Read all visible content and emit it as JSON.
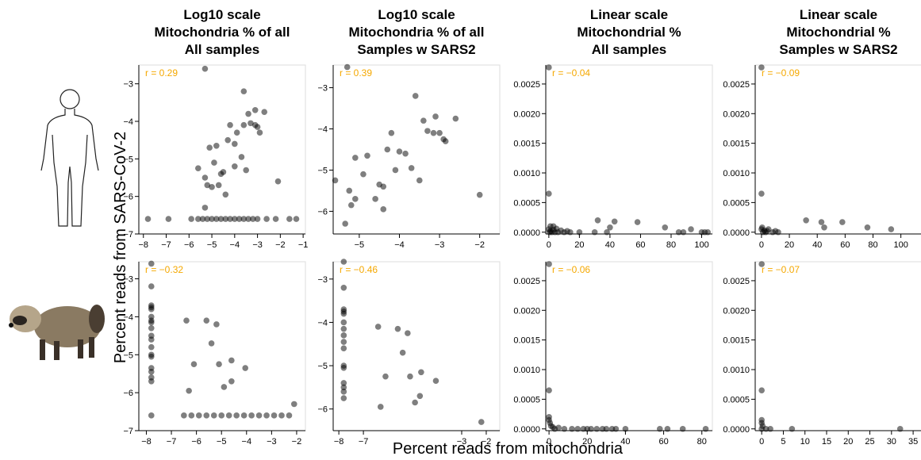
{
  "y_label": "Percent reads from SARS-CoV-2",
  "x_label": "Percent reads from mitochondria",
  "chart_data": [
    {
      "type": "scatter",
      "title": [
        "Log10 scale",
        "Mitochondria % of all",
        "All samples"
      ],
      "annotation": "r = 0.29",
      "color": "#000000",
      "x": [
        -5.3,
        -3.6,
        -3.1,
        -3.4,
        -2.7,
        -3.3,
        -3.1,
        -3.6,
        -3.0,
        -2.9,
        -4.2,
        -3.9,
        -4.0,
        -4.3,
        -4.8,
        -5.1,
        -3.7,
        -4.9,
        -4.5,
        -4.6,
        -5.6,
        -5.3,
        -4.0,
        -3.5,
        -5.2,
        -5.0,
        -4.7,
        -4.4,
        -2.1,
        -5.3,
        -7.8,
        -6.9,
        -5.9,
        -5.6,
        -5.4,
        -5.2,
        -5.0,
        -4.8,
        -4.6,
        -4.4,
        -4.2,
        -4.0,
        -3.8,
        -3.6,
        -3.4,
        -3.2,
        -3.0,
        -2.6,
        -2.2,
        -1.6,
        -1.3
      ],
      "y": [
        -2.6,
        -3.2,
        -3.7,
        -3.8,
        -3.75,
        -4.05,
        -4.1,
        -4.1,
        -4.15,
        -4.3,
        -4.1,
        -4.3,
        -4.6,
        -4.5,
        -4.65,
        -4.7,
        -4.95,
        -5.1,
        -5.35,
        -5.4,
        -5.25,
        -5.5,
        -5.2,
        -5.3,
        -5.7,
        -5.75,
        -5.7,
        -5.95,
        -5.6,
        -6.3,
        -6.6,
        -6.6,
        -6.6,
        -6.6,
        -6.6,
        -6.6,
        -6.6,
        -6.6,
        -6.6,
        -6.6,
        -6.6,
        -6.6,
        -6.6,
        -6.6,
        -6.6,
        -6.6,
        -6.6,
        -6.6,
        -6.6,
        -6.6,
        -6.6
      ],
      "xlim": [
        -8.2,
        -0.9
      ],
      "ylim": [
        -7,
        -2.5
      ],
      "xticks": [
        {
          "value": -8,
          "label": "−8"
        },
        {
          "value": -7,
          "label": "−7"
        },
        {
          "value": -6,
          "label": "−6"
        },
        {
          "value": -5,
          "label": "−5"
        },
        {
          "value": -4,
          "label": "−4"
        },
        {
          "value": -3,
          "label": "−3"
        },
        {
          "value": -2,
          "label": "−2"
        },
        {
          "value": -1,
          "label": "−1"
        }
      ],
      "yticks": [
        {
          "value": -3,
          "label": "−3"
        },
        {
          "value": -4,
          "label": "−4"
        },
        {
          "value": -5,
          "label": "−5"
        },
        {
          "value": -6,
          "label": "−6"
        },
        {
          "value": -7,
          "label": "−7"
        }
      ]
    },
    {
      "type": "scatter",
      "title": [
        "Log10 scale",
        "Mitochondria % of all",
        "Samples w SARS2"
      ],
      "annotation": "r = 0.39",
      "color": "#000000",
      "x": [
        -5.3,
        -3.6,
        -3.1,
        -3.4,
        -2.6,
        -3.3,
        -3.0,
        -3.15,
        -4.2,
        -2.9,
        -2.85,
        -4.0,
        -3.85,
        -4.3,
        -4.8,
        -5.1,
        -3.7,
        -4.9,
        -4.1,
        -5.6,
        -4.5,
        -4.4,
        -3.5,
        -5.25,
        -5.1,
        -4.6,
        -5.2,
        -4.4,
        -2.0,
        -5.35
      ],
      "y": [
        -2.5,
        -3.2,
        -3.7,
        -3.8,
        -3.75,
        -4.05,
        -4.1,
        -4.1,
        -4.1,
        -4.25,
        -4.3,
        -4.55,
        -4.6,
        -4.5,
        -4.65,
        -4.7,
        -4.95,
        -5.1,
        -5.0,
        -5.25,
        -5.35,
        -5.4,
        -5.25,
        -5.5,
        -5.7,
        -5.7,
        -5.85,
        -5.95,
        -5.6,
        -6.3
      ],
      "xlim": [
        -5.65,
        -1.5
      ],
      "ylim": [
        -6.55,
        -2.45
      ],
      "xticks": [
        {
          "value": -5,
          "label": "−5"
        },
        {
          "value": -4,
          "label": "−4"
        },
        {
          "value": -3,
          "label": "−3"
        },
        {
          "value": -2,
          "label": "−2"
        }
      ],
      "yticks": [
        {
          "value": -3,
          "label": "−3"
        },
        {
          "value": -4,
          "label": "−4"
        },
        {
          "value": -5,
          "label": "−5"
        },
        {
          "value": -6,
          "label": "−6"
        }
      ]
    },
    {
      "type": "scatter",
      "title": [
        "Linear scale",
        "Mitochondrial %",
        "All samples"
      ],
      "annotation": "r = −0.04",
      "color": "#000000",
      "x": [
        0,
        0,
        0,
        0.5,
        1,
        2,
        3,
        4,
        5,
        6,
        8,
        10,
        12,
        14,
        20,
        30,
        38,
        32,
        43,
        58,
        40,
        76,
        93,
        100,
        88,
        85,
        102,
        104,
        3,
        1
      ],
      "y": [
        0.00278,
        0.00065,
        5e-05,
        0,
        2e-05,
        0,
        4e-05,
        0,
        6e-05,
        0,
        3e-05,
        0,
        2e-05,
        0,
        0,
        0,
        0,
        0.0002,
        0.00018,
        0.00017,
        8e-05,
        8e-05,
        5e-05,
        0,
        0,
        0,
        0,
        0,
        0.0001,
        0.0001
      ],
      "xlim": [
        -2,
        107
      ],
      "ylim": [
        -3e-05,
        0.00282
      ],
      "xticks": [
        0,
        20,
        40,
        60,
        80,
        100
      ],
      "yticks": [
        {
          "value": 0,
          "label": "0.0000"
        },
        {
          "value": 0.0005,
          "label": "0.0005"
        },
        {
          "value": 0.001,
          "label": "0.0010"
        },
        {
          "value": 0.0015,
          "label": "0.0015"
        },
        {
          "value": 0.002,
          "label": "0.0020"
        },
        {
          "value": 0.0025,
          "label": "0.0025"
        }
      ]
    },
    {
      "type": "scatter",
      "title": [
        "Linear scale",
        "Mitochondrial %",
        "Samples w SARS2"
      ],
      "annotation": "r = −0.09",
      "color": "#000000",
      "x": [
        0,
        0,
        0,
        1,
        2,
        3,
        5,
        8,
        10,
        12,
        32,
        43,
        45,
        58,
        76,
        93,
        0.5,
        4
      ],
      "y": [
        0.00278,
        0.00065,
        5e-05,
        0,
        3e-05,
        0,
        5e-05,
        0,
        2e-05,
        0,
        0.0002,
        0.00017,
        8e-05,
        0.00017,
        8e-05,
        5e-05,
        8e-05,
        2e-05
      ],
      "xlim": [
        -4.5,
        115
      ],
      "ylim": [
        -3e-05,
        0.00282
      ],
      "xticks": [
        0,
        20,
        40,
        60,
        80,
        100
      ],
      "yticks": [
        {
          "value": 0,
          "label": "0.0000"
        },
        {
          "value": 0.0005,
          "label": "0.0005"
        },
        {
          "value": 0.001,
          "label": "0.0010"
        },
        {
          "value": 0.0015,
          "label": "0.0015"
        },
        {
          "value": 0.002,
          "label": "0.0020"
        },
        {
          "value": 0.0025,
          "label": "0.0025"
        }
      ]
    },
    {
      "type": "scatter",
      "annotation": "r = −0.32",
      "color": "#000000",
      "x": [
        -7.8,
        -7.8,
        -7.8,
        -7.8,
        -7.8,
        -7.8,
        -7.8,
        -7.8,
        -7.8,
        -7.8,
        -7.8,
        -7.8,
        -7.8,
        -7.8,
        -7.8,
        -7.8,
        -7.8,
        -7.8,
        -7.8,
        -6.4,
        -5.6,
        -5.2,
        -5.4,
        -6.1,
        -5.1,
        -4.6,
        -4.05,
        -4.9,
        -4.6,
        -6.3,
        -2.1,
        -6.5,
        -6.2,
        -5.9,
        -5.6,
        -5.3,
        -5.0,
        -4.7,
        -4.4,
        -4.1,
        -3.8,
        -3.5,
        -3.2,
        -2.9,
        -2.6,
        -2.3
      ],
      "y": [
        -2.6,
        -3.2,
        -3.7,
        -3.75,
        -3.8,
        -4.0,
        -4.1,
        -4.15,
        -4.3,
        -4.5,
        -4.6,
        -4.8,
        -5.0,
        -5.05,
        -5.35,
        -5.45,
        -5.6,
        -5.7,
        -6.6,
        -4.1,
        -4.1,
        -4.2,
        -4.7,
        -5.25,
        -5.25,
        -5.15,
        -5.35,
        -5.85,
        -5.7,
        -5.95,
        -6.3,
        -6.6,
        -6.6,
        -6.6,
        -6.6,
        -6.6,
        -6.6,
        -6.6,
        -6.6,
        -6.6,
        -6.6,
        -6.6,
        -6.6,
        -6.6,
        -6.6,
        -6.6
      ],
      "xlim": [
        -8.3,
        -1.65
      ],
      "ylim": [
        -7,
        -2.55
      ],
      "xticks": [
        {
          "value": -8,
          "label": "−8"
        },
        {
          "value": -7,
          "label": "−7"
        },
        {
          "value": -6,
          "label": "−6"
        },
        {
          "value": -5,
          "label": "−5"
        },
        {
          "value": -4,
          "label": "−4"
        },
        {
          "value": -3,
          "label": "−3"
        },
        {
          "value": -2,
          "label": "−2"
        }
      ],
      "yticks": [
        {
          "value": -3,
          "label": "−3"
        },
        {
          "value": -4,
          "label": "−4"
        },
        {
          "value": -5,
          "label": "−5"
        },
        {
          "value": -6,
          "label": "−6"
        },
        {
          "value": -7,
          "label": "−7"
        }
      ]
    },
    {
      "type": "scatter",
      "annotation": "r = −0.46",
      "color": "#000000",
      "x": [
        -7.8,
        -7.8,
        -7.8,
        -7.8,
        -7.8,
        -7.8,
        -7.8,
        -7.8,
        -7.8,
        -7.8,
        -7.8,
        -7.8,
        -7.8,
        -7.8,
        -7.8,
        -7.8,
        -6.4,
        -5.6,
        -5.2,
        -5.4,
        -6.1,
        -5.1,
        -4.65,
        -4.05,
        -4.9,
        -4.7,
        -6.3,
        -2.2
      ],
      "y": [
        -2.6,
        -3.2,
        -3.7,
        -3.75,
        -3.8,
        -4.0,
        -4.15,
        -4.3,
        -4.45,
        -4.6,
        -5.0,
        -5.05,
        -5.4,
        -5.5,
        -5.6,
        -5.75,
        -4.1,
        -4.15,
        -4.25,
        -4.7,
        -5.25,
        -5.25,
        -5.15,
        -5.35,
        -5.85,
        -5.7,
        -5.95,
        -6.3
      ],
      "xlim": [
        -8.23,
        -1.45
      ],
      "ylim": [
        -6.5,
        -2.6
      ],
      "xticks": [
        {
          "value": -8,
          "label": "−8"
        },
        {
          "value": -7,
          "label": "−7"
        },
        {
          "value": -3,
          "label": "−3"
        },
        {
          "value": -2,
          "label": "−2"
        }
      ],
      "yticks": [
        {
          "value": -3,
          "label": "−3"
        },
        {
          "value": -4,
          "label": "−4"
        },
        {
          "value": -5,
          "label": "−5"
        },
        {
          "value": -6,
          "label": "−6"
        }
      ]
    },
    {
      "type": "scatter",
      "annotation": "r = −0.06",
      "color": "#000000",
      "x": [
        0,
        0,
        0,
        0,
        0.5,
        1,
        2,
        3,
        5,
        8,
        12,
        15,
        18,
        20,
        22,
        25,
        28,
        30,
        33,
        35,
        40,
        58,
        62,
        70,
        82
      ],
      "y": [
        0.00278,
        0.00065,
        0.0002,
        0.00015,
        0.0001,
        5e-05,
        3e-05,
        0,
        2e-05,
        0,
        0,
        0,
        0,
        0,
        0,
        0,
        0,
        0,
        0,
        0,
        0,
        0,
        0,
        0,
        0
      ],
      "xlim": [
        -1.7,
        85.5
      ],
      "ylim": [
        -3e-05,
        0.00282
      ],
      "xticks": [
        0,
        20,
        40,
        60,
        80
      ],
      "yticks": [
        {
          "value": 0,
          "label": "0.0000"
        },
        {
          "value": 0.0005,
          "label": "0.0005"
        },
        {
          "value": 0.001,
          "label": "0.0010"
        },
        {
          "value": 0.0015,
          "label": "0.0015"
        },
        {
          "value": 0.002,
          "label": "0.0020"
        },
        {
          "value": 0.0025,
          "label": "0.0025"
        }
      ]
    },
    {
      "type": "scatter",
      "annotation": "r = −0.07",
      "color": "#000000",
      "x": [
        0,
        0,
        0,
        0,
        0.2,
        0,
        1,
        2,
        7,
        32
      ],
      "y": [
        0.00278,
        0.00065,
        0.00015,
        0.0001,
        5e-05,
        0,
        0,
        0,
        0,
        0
      ],
      "xlim": [
        -1.5,
        37
      ],
      "ylim": [
        -3e-05,
        0.00282
      ],
      "xticks": [
        0,
        5,
        10,
        15,
        20,
        25,
        30,
        35
      ],
      "yticks": [
        {
          "value": 0,
          "label": "0.0000"
        },
        {
          "value": 0.0005,
          "label": "0.0005"
        },
        {
          "value": 0.001,
          "label": "0.0010"
        },
        {
          "value": 0.0015,
          "label": "0.0015"
        },
        {
          "value": 0.002,
          "label": "0.0020"
        },
        {
          "value": 0.0025,
          "label": "0.0025"
        }
      ]
    }
  ]
}
